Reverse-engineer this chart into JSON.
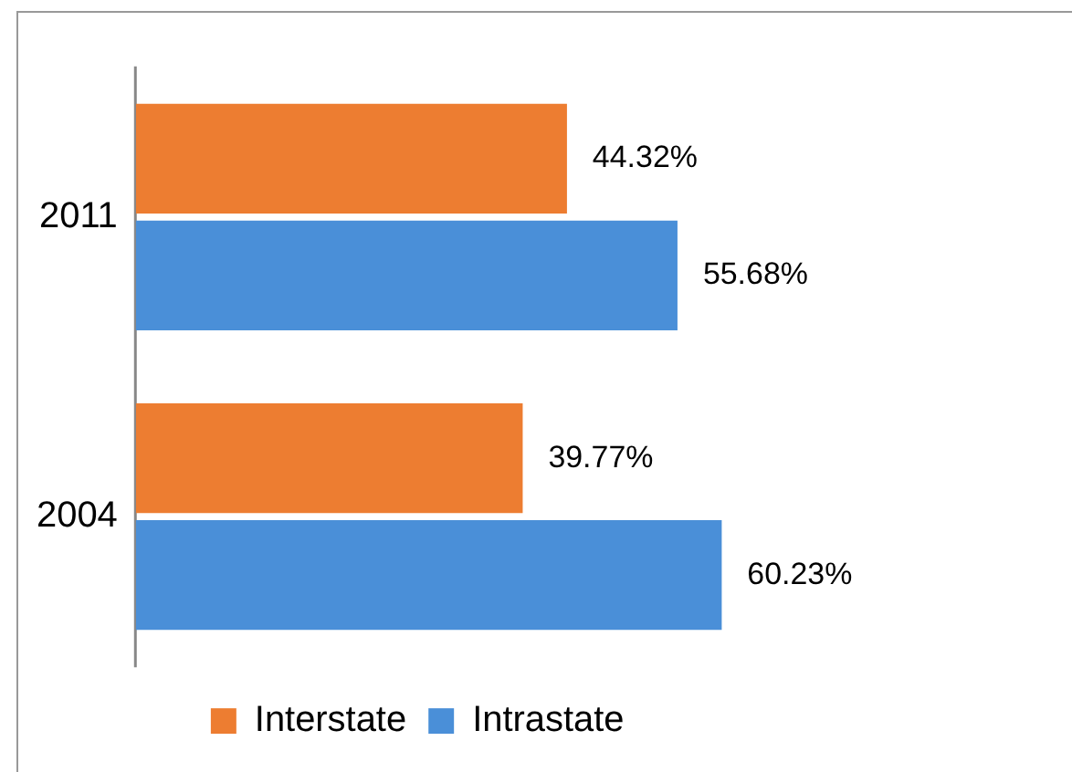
{
  "chart_data": {
    "type": "bar",
    "orientation": "horizontal",
    "categories": [
      "2011",
      "2004"
    ],
    "legend": "bottom",
    "series": [
      {
        "name": "Interstate",
        "color": "#ed7d31",
        "values": [
          44.32,
          39.77
        ],
        "value_labels": [
          "44.32%",
          "39.77%"
        ]
      },
      {
        "name": "Intrastate",
        "color": "#4a8fd8",
        "values": [
          55.68,
          60.23
        ],
        "value_labels": [
          "55.68%",
          "60.23%"
        ]
      }
    ]
  }
}
